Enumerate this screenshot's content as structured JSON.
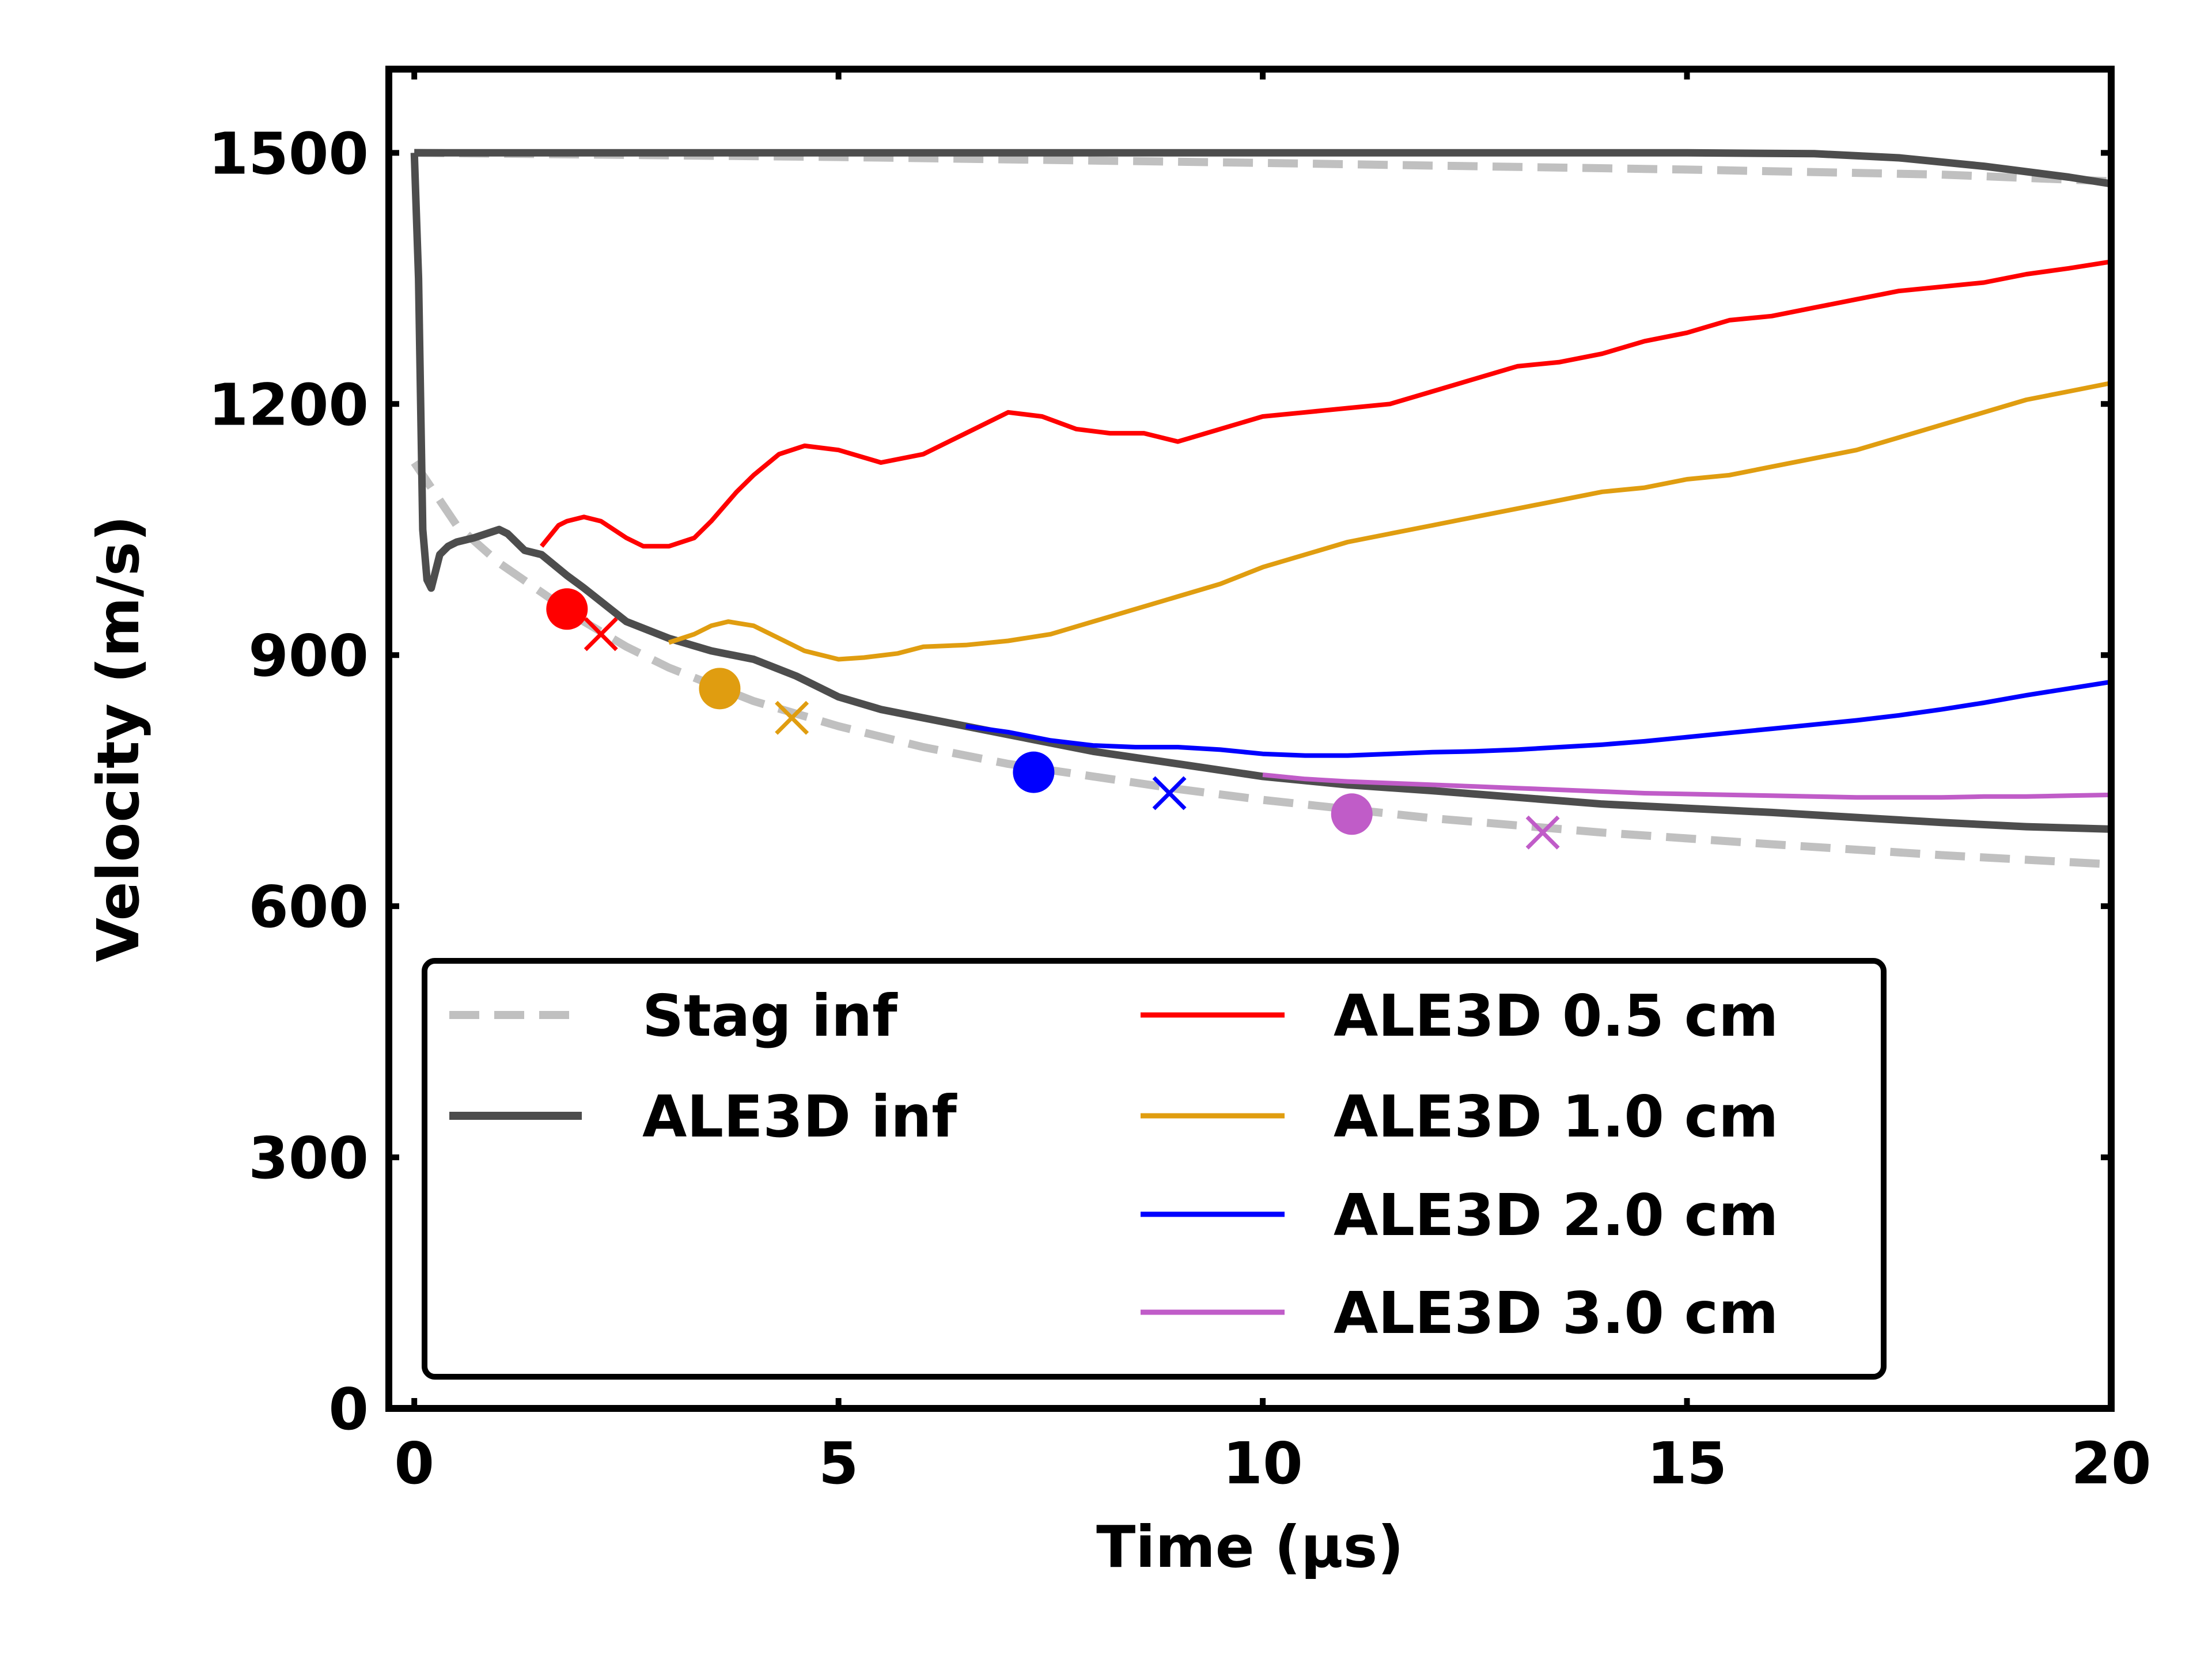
{
  "chart_data": {
    "type": "line",
    "title": "",
    "xlabel": "Time (μs)",
    "ylabel": "Velocity (m/s)",
    "xlim": [
      -0.3,
      20
    ],
    "ylim": [
      0,
      1600
    ],
    "xticks": [
      0,
      5,
      10,
      15,
      20
    ],
    "yticks": [
      0,
      300,
      600,
      900,
      1200,
      1500
    ],
    "grid": false,
    "legend_position": "lower-center",
    "series": [
      {
        "name": "Stag inf",
        "color": "#c0c0c0",
        "style": "dashed",
        "x": [
          0.0,
          0.3,
          0.5,
          1.0,
          1.5,
          2.0,
          2.5,
          3.0,
          4.0,
          5.0,
          6.0,
          7.0,
          8.0,
          9.0,
          10.0,
          12.0,
          14.0,
          16.0,
          18.0,
          20.0
        ],
        "y": [
          1130,
          1085,
          1055,
          1010,
          975,
          940,
          910,
          885,
          845,
          815,
          790,
          770,
          755,
          740,
          727,
          705,
          688,
          674,
          661,
          650
        ]
      },
      {
        "name": "Stag inf (upper)",
        "color": "#c0c0c0",
        "style": "dashed",
        "x": [
          0.0,
          5.0,
          10.0,
          15.0,
          18.0,
          20.0
        ],
        "y": [
          1500,
          1495,
          1488,
          1480,
          1474,
          1466
        ]
      },
      {
        "name": "ALE3D inf",
        "color": "#4d4d4d",
        "style": "solid",
        "x": [
          0.0,
          0.05,
          0.1,
          0.15,
          0.2,
          0.25,
          0.3,
          0.4,
          0.5,
          0.7,
          1.0,
          1.1,
          1.3,
          1.5,
          1.8,
          2.0,
          2.5,
          3.0,
          3.5,
          4.0,
          4.5,
          5.0,
          5.5,
          6.0,
          7.0,
          8.0,
          9.0,
          10.0,
          11.0,
          12.0,
          13.0,
          14.0,
          15.0,
          16.0,
          17.0,
          18.0,
          19.0,
          20.0
        ],
        "y": [
          1500,
          1350,
          1050,
          990,
          980,
          1000,
          1020,
          1030,
          1035,
          1040,
          1050,
          1045,
          1025,
          1020,
          995,
          980,
          940,
          920,
          905,
          895,
          875,
          850,
          835,
          825,
          805,
          785,
          770,
          755,
          745,
          738,
          730,
          722,
          717,
          712,
          706,
          700,
          695,
          692
        ]
      },
      {
        "name": "ALE3D inf (upper)",
        "color": "#4d4d4d",
        "style": "solid",
        "x": [
          0.0,
          5.0,
          10.0,
          15.0,
          16.5,
          17.5,
          18.5,
          19.5,
          20.0
        ],
        "y": [
          1500,
          1500,
          1500,
          1500,
          1499,
          1494,
          1484,
          1471,
          1463
        ]
      },
      {
        "name": "ALE3D 0.5 cm",
        "color": "#ff0000",
        "style": "solid",
        "x": [
          1.5,
          1.7,
          1.8,
          2.0,
          2.2,
          2.5,
          2.7,
          3.0,
          3.3,
          3.5,
          3.8,
          4.0,
          4.3,
          4.6,
          5.0,
          5.5,
          6.0,
          6.5,
          7.0,
          7.4,
          7.8,
          8.2,
          8.6,
          9.0,
          9.5,
          10.0,
          10.5,
          11.0,
          11.5,
          12.0,
          12.5,
          13.0,
          13.5,
          14.0,
          14.5,
          15.0,
          15.5,
          16.0,
          16.5,
          17.0,
          17.5,
          18.0,
          18.5,
          19.0,
          19.5,
          20.0
        ],
        "y": [
          1030,
          1055,
          1060,
          1065,
          1060,
          1040,
          1030,
          1030,
          1040,
          1060,
          1095,
          1115,
          1140,
          1150,
          1145,
          1130,
          1140,
          1165,
          1190,
          1185,
          1170,
          1165,
          1165,
          1155,
          1170,
          1185,
          1190,
          1195,
          1200,
          1215,
          1230,
          1245,
          1250,
          1260,
          1275,
          1285,
          1300,
          1305,
          1315,
          1325,
          1335,
          1340,
          1345,
          1355,
          1362,
          1370
        ]
      },
      {
        "name": "ALE3D 1.0 cm",
        "color": "#e09d10",
        "style": "solid",
        "x": [
          3.0,
          3.3,
          3.5,
          3.7,
          4.0,
          4.3,
          4.6,
          5.0,
          5.3,
          5.7,
          6.0,
          6.5,
          7.0,
          7.5,
          8.0,
          8.5,
          9.0,
          9.5,
          10.0,
          10.5,
          11.0,
          11.5,
          12.0,
          12.5,
          13.0,
          13.5,
          14.0,
          14.5,
          15.0,
          15.5,
          16.0,
          16.5,
          17.0,
          17.5,
          18.0,
          18.5,
          19.0,
          19.5,
          20.0
        ],
        "y": [
          915,
          925,
          935,
          940,
          935,
          920,
          905,
          895,
          897,
          902,
          910,
          912,
          917,
          925,
          940,
          955,
          970,
          985,
          1005,
          1020,
          1035,
          1045,
          1055,
          1065,
          1075,
          1085,
          1095,
          1100,
          1110,
          1115,
          1125,
          1135,
          1145,
          1160,
          1175,
          1190,
          1205,
          1215,
          1225
        ]
      },
      {
        "name": "ALE3D 2.0 cm",
        "color": "#0000ff",
        "style": "solid",
        "x": [
          6.5,
          7.0,
          7.5,
          8.0,
          8.5,
          9.0,
          9.5,
          10.0,
          10.5,
          11.0,
          11.5,
          12.0,
          12.5,
          13.0,
          13.5,
          14.0,
          14.5,
          15.0,
          15.5,
          16.0,
          16.5,
          17.0,
          17.5,
          18.0,
          18.5,
          19.0,
          19.5,
          20.0
        ],
        "y": [
          815,
          808,
          798,
          792,
          790,
          790,
          787,
          782,
          780,
          780,
          782,
          784,
          785,
          787,
          790,
          793,
          797,
          802,
          807,
          812,
          817,
          822,
          828,
          835,
          843,
          852,
          860,
          868
        ]
      },
      {
        "name": "ALE3D 3.0 cm",
        "color": "#c05cc8",
        "style": "solid",
        "x": [
          10.0,
          10.5,
          11.0,
          11.5,
          12.0,
          12.5,
          13.0,
          13.5,
          14.0,
          14.5,
          15.0,
          15.5,
          16.0,
          16.5,
          17.0,
          17.5,
          18.0,
          18.5,
          19.0,
          19.5,
          20.0
        ],
        "y": [
          757,
          752,
          749,
          747,
          745,
          743,
          741,
          739,
          737,
          735,
          734,
          733,
          732,
          731,
          730,
          730,
          730,
          731,
          731,
          732,
          733
        ]
      }
    ],
    "markers": [
      {
        "series": "ALE3D 0.5 cm",
        "symbol": "circle",
        "x": 1.8,
        "y": 955,
        "color": "#ff0000"
      },
      {
        "series": "ALE3D 0.5 cm",
        "symbol": "x",
        "x": 2.2,
        "y": 925,
        "color": "#ff0000"
      },
      {
        "series": "ALE3D 1.0 cm",
        "symbol": "circle",
        "x": 3.6,
        "y": 860,
        "color": "#e09d10"
      },
      {
        "series": "ALE3D 1.0 cm",
        "symbol": "x",
        "x": 4.45,
        "y": 825,
        "color": "#e09d10"
      },
      {
        "series": "ALE3D 2.0 cm",
        "symbol": "circle",
        "x": 7.3,
        "y": 760,
        "color": "#0000ff"
      },
      {
        "series": "ALE3D 2.0 cm",
        "symbol": "x",
        "x": 8.9,
        "y": 735,
        "color": "#0000ff"
      },
      {
        "series": "ALE3D 3.0 cm",
        "symbol": "circle",
        "x": 11.05,
        "y": 710,
        "color": "#c05cc8"
      },
      {
        "series": "ALE3D 3.0 cm",
        "symbol": "x",
        "x": 13.3,
        "y": 688,
        "color": "#c05cc8"
      }
    ],
    "legend": [
      {
        "label": "Stag inf",
        "color": "#c0c0c0",
        "style": "dashed"
      },
      {
        "label": "ALE3D inf",
        "color": "#4d4d4d",
        "style": "solid-thick"
      },
      {
        "label": "ALE3D 0.5 cm",
        "color": "#ff0000",
        "style": "solid"
      },
      {
        "label": "ALE3D 1.0 cm",
        "color": "#e09d10",
        "style": "solid"
      },
      {
        "label": "ALE3D 2.0 cm",
        "color": "#0000ff",
        "style": "solid"
      },
      {
        "label": "ALE3D 3.0 cm",
        "color": "#c05cc8",
        "style": "solid"
      }
    ]
  }
}
